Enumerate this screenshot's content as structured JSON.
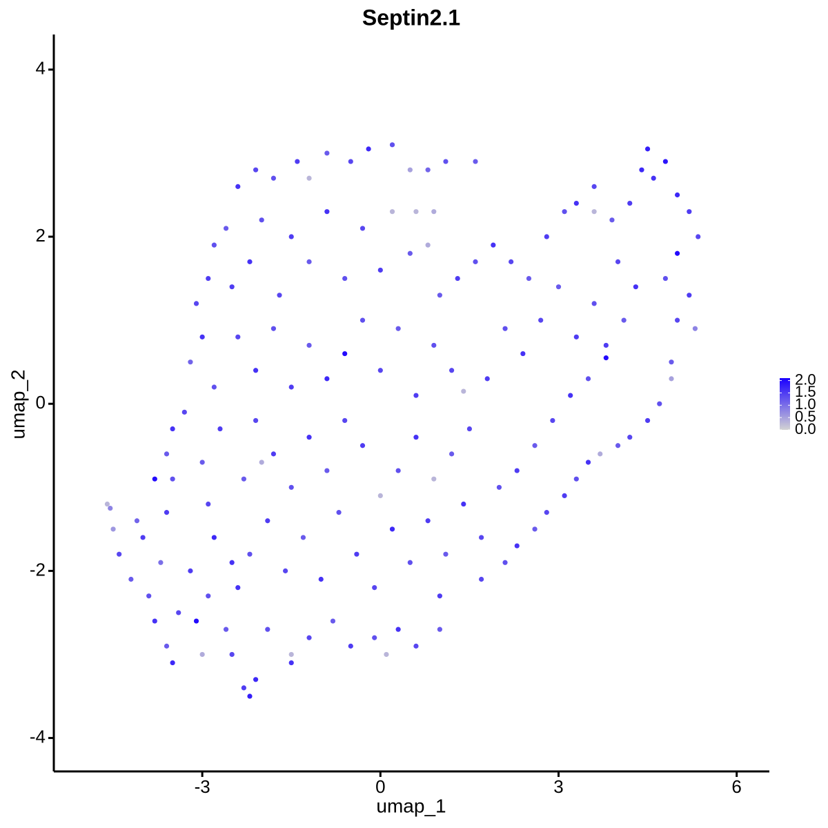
{
  "chart_data": {
    "type": "scatter",
    "title": "Septin2.1",
    "xlabel": "umap_1",
    "ylabel": "umap_2",
    "xlim": [
      -5.5,
      6.55
    ],
    "ylim": [
      -4.4,
      4.42
    ],
    "xticks": [
      -3,
      0,
      3,
      6
    ],
    "yticks": [
      -4,
      -2,
      0,
      2,
      4
    ],
    "colors": [
      "#d3d3d3",
      "#1a00ff"
    ],
    "color_lim": [
      0,
      2.1
    ],
    "color_ticks": [
      {
        "value": 0,
        "label": "0.0"
      },
      {
        "value": 0.5,
        "label": "0.5"
      },
      {
        "value": 1,
        "label": "1.0"
      },
      {
        "value": 1.5,
        "label": "1.5"
      },
      {
        "value": 2,
        "label": "2.0"
      }
    ],
    "x": [
      -4.6,
      -4.55,
      -4.5,
      -4.4,
      -4.2,
      -4.0,
      -4.1,
      -3.9,
      -3.8,
      -3.6,
      -3.5,
      -3.4,
      -3.7,
      -3.6,
      -3.5,
      -3.6,
      -3.5,
      -3.3,
      -3.2,
      -3.1,
      -3.0,
      -2.9,
      -2.8,
      -2.9,
      -3.0,
      -2.7,
      -2.8,
      -3.2,
      -3.0,
      -3.1,
      -2.9,
      -2.8,
      -2.6,
      -2.4,
      -2.1,
      -1.8,
      -1.4,
      -1.2,
      -0.9,
      -0.5,
      -0.2,
      0.2,
      0.5,
      0.8,
      1.1,
      1.6,
      0.6,
      0.9,
      -2.5,
      -2.2,
      -2.0,
      -1.7,
      -1.5,
      -1.2,
      -0.9,
      -0.6,
      -0.3,
      0.0,
      0.2,
      0.5,
      0.8,
      -2.4,
      -2.1,
      -1.8,
      -1.5,
      -1.2,
      -0.9,
      -0.6,
      -0.3,
      0.0,
      0.3,
      0.6,
      0.9,
      1.2,
      1.4,
      1.0,
      1.3,
      1.6,
      1.9,
      2.2,
      2.5,
      2.8,
      3.1,
      3.3,
      3.6,
      3.6,
      3.9,
      4.2,
      4.4,
      4.5,
      4.6,
      4.8,
      5.0,
      5.2,
      5.35,
      5.0,
      4.8,
      5.2,
      5.0,
      5.3,
      4.9,
      4.9,
      4.7,
      4.5,
      4.2,
      4.0,
      3.7,
      3.5,
      3.3,
      3.1,
      2.8,
      2.6,
      2.3,
      2.1,
      1.7,
      1.0,
      1.0,
      0.6,
      0.3,
      0.1,
      -0.1,
      -0.5,
      -0.8,
      -1.2,
      -1.5,
      -1.5,
      -1.9,
      -2.1,
      -2.3,
      -2.2,
      -2.5,
      -2.6,
      -2.4,
      -2.2,
      -1.9,
      -1.6,
      -1.3,
      -1.0,
      -0.7,
      -0.4,
      -0.1,
      0.2,
      0.5,
      0.8,
      1.1,
      1.4,
      1.7,
      2.0,
      2.3,
      2.6,
      2.9,
      3.2,
      3.5,
      3.8,
      4.1,
      4.3,
      4.0,
      3.6,
      3.3,
      3.0,
      2.7,
      2.4,
      2.1,
      1.8,
      1.5,
      1.2,
      0.9,
      0.6,
      0.3,
      0.0,
      -0.3,
      -0.6,
      -0.9,
      -1.2,
      -1.5,
      -1.8,
      -2.1,
      -2.3,
      -2.5,
      -2.0,
      -3.8,
      3.8
    ],
    "y": [
      -1.2,
      -1.25,
      -1.5,
      -1.8,
      -2.1,
      -1.6,
      -1.4,
      -2.3,
      -2.6,
      -2.9,
      -3.1,
      -2.5,
      -1.9,
      -1.3,
      -0.9,
      -0.6,
      -0.3,
      -0.1,
      -2.0,
      -2.6,
      -3.0,
      -2.3,
      -1.6,
      -1.2,
      -0.7,
      -0.3,
      0.2,
      0.5,
      0.8,
      1.2,
      1.5,
      1.9,
      2.1,
      2.6,
      2.8,
      2.7,
      2.9,
      2.7,
      3.0,
      2.9,
      3.05,
      3.1,
      2.8,
      2.8,
      2.9,
      2.9,
      2.3,
      2.3,
      1.4,
      1.7,
      2.2,
      1.3,
      2.0,
      1.7,
      2.3,
      1.5,
      2.1,
      1.6,
      2.3,
      1.8,
      1.9,
      0.8,
      0.4,
      0.9,
      0.2,
      0.7,
      0.3,
      0.6,
      1.0,
      0.4,
      0.9,
      0.1,
      0.7,
      0.4,
      0.15,
      1.3,
      1.5,
      1.7,
      1.9,
      1.7,
      1.5,
      2.0,
      2.3,
      2.4,
      2.6,
      2.3,
      2.2,
      2.4,
      2.8,
      3.05,
      2.7,
      2.9,
      2.5,
      2.3,
      2.0,
      1.8,
      1.5,
      1.3,
      1.0,
      0.9,
      0.5,
      0.3,
      0.0,
      -0.2,
      -0.4,
      -0.5,
      -0.6,
      -0.7,
      -0.9,
      -1.1,
      -1.3,
      -1.5,
      -1.7,
      -1.9,
      -2.1,
      -2.3,
      -2.7,
      -2.9,
      -2.7,
      -3.0,
      -2.8,
      -2.9,
      -2.6,
      -2.8,
      -3.1,
      -3.0,
      -2.7,
      -3.3,
      -3.4,
      -3.5,
      -3.0,
      -2.7,
      -2.2,
      -1.8,
      -1.4,
      -2.0,
      -1.6,
      -2.1,
      -1.3,
      -1.8,
      -2.2,
      -1.5,
      -1.9,
      -1.4,
      -1.8,
      -1.2,
      -1.6,
      -1.0,
      -0.8,
      -0.5,
      -0.2,
      0.1,
      0.3,
      0.7,
      1.0,
      1.4,
      1.7,
      1.2,
      0.8,
      1.4,
      1.0,
      0.6,
      0.9,
      0.3,
      -0.3,
      -0.6,
      -0.9,
      -0.4,
      -0.8,
      -1.1,
      -0.5,
      -0.2,
      -0.8,
      -0.4,
      -1.0,
      -0.6,
      -0.2,
      -0.9,
      -1.9,
      -0.7,
      -0.9,
      0.55
    ],
    "values": [
      0.3,
      0.8,
      0.6,
      1.4,
      1.2,
      1.5,
      1.1,
      1.3,
      1.6,
      1.2,
      1.7,
      1.4,
      1.0,
      1.5,
      1.3,
      1.2,
      1.6,
      1.4,
      1.5,
      2.0,
      0.4,
      1.3,
      1.7,
      1.4,
      1.2,
      1.5,
      1.3,
      1.1,
      1.6,
      1.4,
      1.5,
      1.3,
      1.2,
      1.6,
      1.4,
      1.3,
      1.5,
      0.3,
      1.2,
      1.4,
      1.7,
      1.3,
      0.5,
      1.1,
      1.3,
      1.2,
      0.3,
      0.4,
      1.5,
      1.6,
      1.3,
      1.4,
      1.5,
      1.2,
      1.6,
      1.3,
      1.4,
      1.5,
      0.3,
      1.2,
      0.4,
      1.4,
      1.6,
      1.3,
      1.5,
      1.2,
      1.7,
      2.0,
      1.3,
      1.4,
      1.2,
      1.5,
      1.3,
      1.4,
      0.3,
      1.2,
      1.5,
      1.3,
      1.6,
      1.4,
      1.2,
      1.5,
      1.3,
      1.6,
      1.4,
      0.3,
      1.2,
      1.5,
      1.7,
      1.8,
      1.6,
      1.9,
      1.7,
      1.5,
      1.4,
      2.0,
      1.3,
      1.5,
      1.4,
      0.8,
      1.2,
      0.5,
      1.3,
      1.5,
      1.4,
      1.2,
      0.4,
      1.6,
      1.3,
      1.5,
      1.4,
      1.2,
      1.6,
      1.3,
      1.4,
      1.5,
      1.2,
      1.4,
      1.6,
      0.3,
      1.3,
      1.5,
      1.2,
      1.4,
      1.6,
      0.3,
      1.3,
      1.7,
      1.5,
      1.8,
      1.4,
      1.2,
      1.6,
      1.3,
      1.5,
      1.4,
      1.2,
      1.6,
      1.3,
      1.5,
      1.4,
      1.7,
      1.3,
      1.5,
      1.2,
      1.6,
      1.4,
      1.3,
      1.5,
      1.2,
      1.4,
      1.6,
      1.3,
      1.5,
      1.2,
      1.6,
      1.4,
      1.3,
      1.5,
      1.2,
      1.4,
      1.6,
      1.3,
      1.5,
      1.4,
      1.2,
      0.3,
      1.6,
      1.3,
      0.3,
      1.5,
      1.4,
      1.2,
      1.6,
      1.3,
      1.5,
      1.4,
      1.2,
      1.6,
      0.4,
      2.0,
      2.0
    ]
  }
}
